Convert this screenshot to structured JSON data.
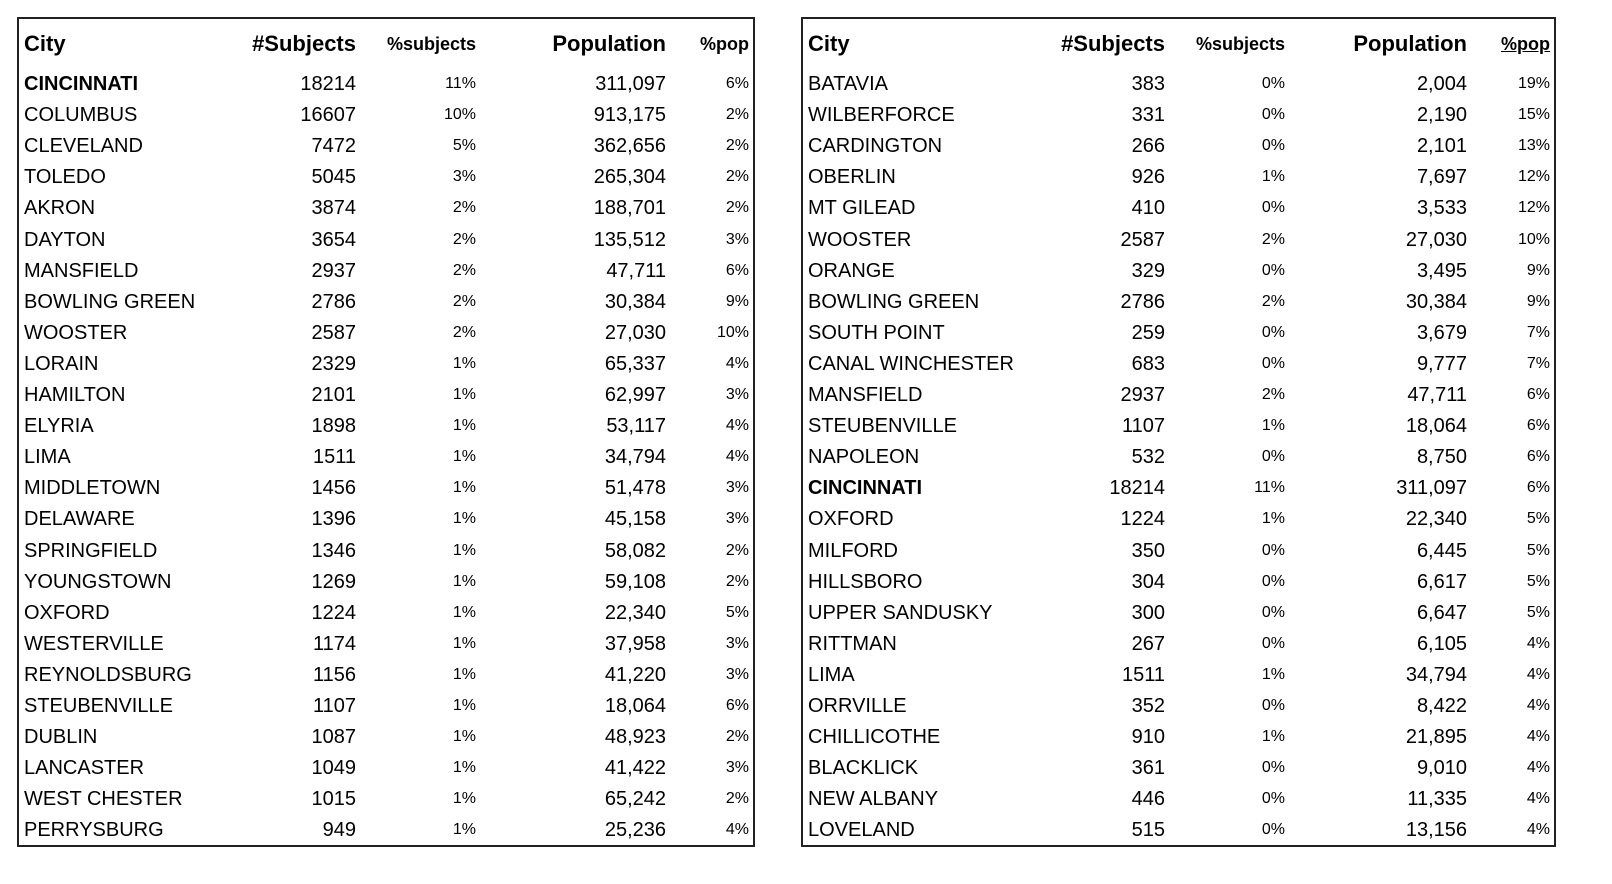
{
  "tables": [
    {
      "headers": [
        "City",
        "#Subjects",
        "%subjects",
        "Population",
        "%pop"
      ],
      "rows": [
        [
          "CINCINNATI",
          "18214",
          "11%",
          "311,097",
          "6%"
        ],
        [
          "COLUMBUS",
          "16607",
          "10%",
          "913,175",
          "2%"
        ],
        [
          "CLEVELAND",
          "7472",
          "5%",
          "362,656",
          "2%"
        ],
        [
          "TOLEDO",
          "5045",
          "3%",
          "265,304",
          "2%"
        ],
        [
          "AKRON",
          "3874",
          "2%",
          "188,701",
          "2%"
        ],
        [
          "DAYTON",
          "3654",
          "2%",
          "135,512",
          "3%"
        ],
        [
          "MANSFIELD",
          "2937",
          "2%",
          "47,711",
          "6%"
        ],
        [
          "BOWLING GREEN",
          "2786",
          "2%",
          "30,384",
          "9%"
        ],
        [
          "WOOSTER",
          "2587",
          "2%",
          "27,030",
          "10%"
        ],
        [
          "LORAIN",
          "2329",
          "1%",
          "65,337",
          "4%"
        ],
        [
          "HAMILTON",
          "2101",
          "1%",
          "62,997",
          "3%"
        ],
        [
          "ELYRIA",
          "1898",
          "1%",
          "53,117",
          "4%"
        ],
        [
          "LIMA",
          "1511",
          "1%",
          "34,794",
          "4%"
        ],
        [
          "MIDDLETOWN",
          "1456",
          "1%",
          "51,478",
          "3%"
        ],
        [
          "DELAWARE",
          "1396",
          "1%",
          "45,158",
          "3%"
        ],
        [
          "SPRINGFIELD",
          "1346",
          "1%",
          "58,082",
          "2%"
        ],
        [
          "YOUNGSTOWN",
          "1269",
          "1%",
          "59,108",
          "2%"
        ],
        [
          "OXFORD",
          "1224",
          "1%",
          "22,340",
          "5%"
        ],
        [
          "WESTERVILLE",
          "1174",
          "1%",
          "37,958",
          "3%"
        ],
        [
          "REYNOLDSBURG",
          "1156",
          "1%",
          "41,220",
          "3%"
        ],
        [
          "STEUBENVILLE",
          "1107",
          "1%",
          "18,064",
          "6%"
        ],
        [
          "DUBLIN",
          "1087",
          "1%",
          "48,923",
          "2%"
        ],
        [
          "LANCASTER",
          "1049",
          "1%",
          "41,422",
          "3%"
        ],
        [
          "WEST CHESTER",
          "1015",
          "1%",
          "65,242",
          "2%"
        ],
        [
          "PERRYSBURG",
          "949",
          "1%",
          "25,236",
          "4%"
        ]
      ]
    },
    {
      "headers": [
        "City",
        "#Subjects",
        "%subjects",
        "Population",
        "%pop"
      ],
      "rows": [
        [
          "BATAVIA",
          "383",
          "0%",
          "2,004",
          "19%"
        ],
        [
          "WILBERFORCE",
          "331",
          "0%",
          "2,190",
          "15%"
        ],
        [
          "CARDINGTON",
          "266",
          "0%",
          "2,101",
          "13%"
        ],
        [
          "OBERLIN",
          "926",
          "1%",
          "7,697",
          "12%"
        ],
        [
          "MT GILEAD",
          "410",
          "0%",
          "3,533",
          "12%"
        ],
        [
          "WOOSTER",
          "2587",
          "2%",
          "27,030",
          "10%"
        ],
        [
          "ORANGE",
          "329",
          "0%",
          "3,495",
          "9%"
        ],
        [
          "BOWLING GREEN",
          "2786",
          "2%",
          "30,384",
          "9%"
        ],
        [
          "SOUTH POINT",
          "259",
          "0%",
          "3,679",
          "7%"
        ],
        [
          "CANAL WINCHESTER",
          "683",
          "0%",
          "9,777",
          "7%"
        ],
        [
          "MANSFIELD",
          "2937",
          "2%",
          "47,711",
          "6%"
        ],
        [
          "STEUBENVILLE",
          "1107",
          "1%",
          "18,064",
          "6%"
        ],
        [
          "NAPOLEON",
          "532",
          "0%",
          "8,750",
          "6%"
        ],
        [
          "CINCINNATI",
          "18214",
          "11%",
          "311,097",
          "6%"
        ],
        [
          "OXFORD",
          "1224",
          "1%",
          "22,340",
          "5%"
        ],
        [
          "MILFORD",
          "350",
          "0%",
          "6,445",
          "5%"
        ],
        [
          "HILLSBORO",
          "304",
          "0%",
          "6,617",
          "5%"
        ],
        [
          "UPPER SANDUSKY",
          "300",
          "0%",
          "6,647",
          "5%"
        ],
        [
          "RITTMAN",
          "267",
          "0%",
          "6,105",
          "4%"
        ],
        [
          "LIMA",
          "1511",
          "1%",
          "34,794",
          "4%"
        ],
        [
          "ORRVILLE",
          "352",
          "0%",
          "8,422",
          "4%"
        ],
        [
          "CHILLICOTHE",
          "910",
          "1%",
          "21,895",
          "4%"
        ],
        [
          "BLACKLICK",
          "361",
          "0%",
          "9,010",
          "4%"
        ],
        [
          "NEW ALBANY",
          "446",
          "0%",
          "11,335",
          "4%"
        ],
        [
          "LOVELAND",
          "515",
          "0%",
          "13,156",
          "4%"
        ]
      ]
    }
  ]
}
